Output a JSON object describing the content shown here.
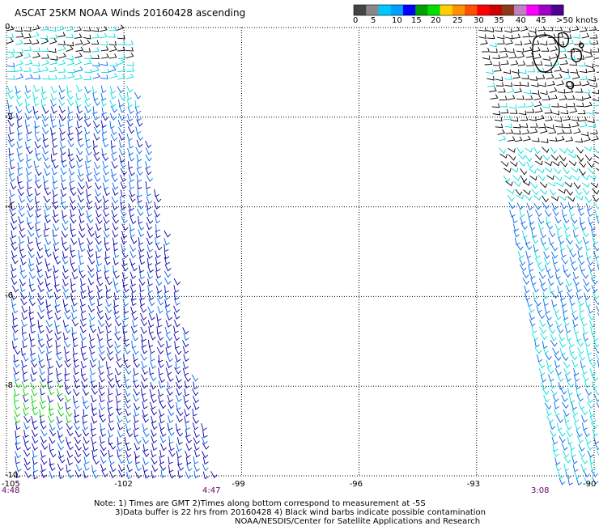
{
  "title": "ASCAT 25KM NOAA Winds 20160428 ascending",
  "colorbar": {
    "labels": [
      "0",
      "5",
      "10",
      "15",
      "20",
      "25",
      "30",
      "35",
      "40",
      "45",
      ">50 knots"
    ],
    "colors": [
      "#444444",
      "#888888",
      "#00c8ff",
      "#00a0ff",
      "#0000ff",
      "#00a000",
      "#00e000",
      "#ffd000",
      "#ff9000",
      "#ff5000",
      "#ff0000",
      "#cc0000",
      "#8b3a1a",
      "#c080c0",
      "#ff00ff",
      "#a000c8",
      "#500090"
    ]
  },
  "axes": {
    "lat_labels": [
      "0",
      "-2",
      "-4",
      "-6",
      "-8",
      "-10"
    ],
    "lon_labels": [
      "-105",
      "-102",
      "-99",
      "-96",
      "-93",
      "-90"
    ]
  },
  "swath_times": {
    "left_bottom": "4:48",
    "mid_bottom": "4:47",
    "right_bottom": "3:08"
  },
  "notes": {
    "line1": "Note: 1) Times are GMT 2)Times along bottom correspond to measurement at -5S",
    "line2": "3)Data buffer is 22 hrs from 20160428 4) Black wind barbs indicate possible contamination",
    "line3": "NOAA/NESDIS/Center for Satellite Applications and Research"
  },
  "barb_colors": {
    "calm": "#000000",
    "light": "#00dddd",
    "moderate": "#0066ee",
    "fresh": "#0000aa",
    "strong": "#00cc00",
    "islands": "#000000"
  }
}
